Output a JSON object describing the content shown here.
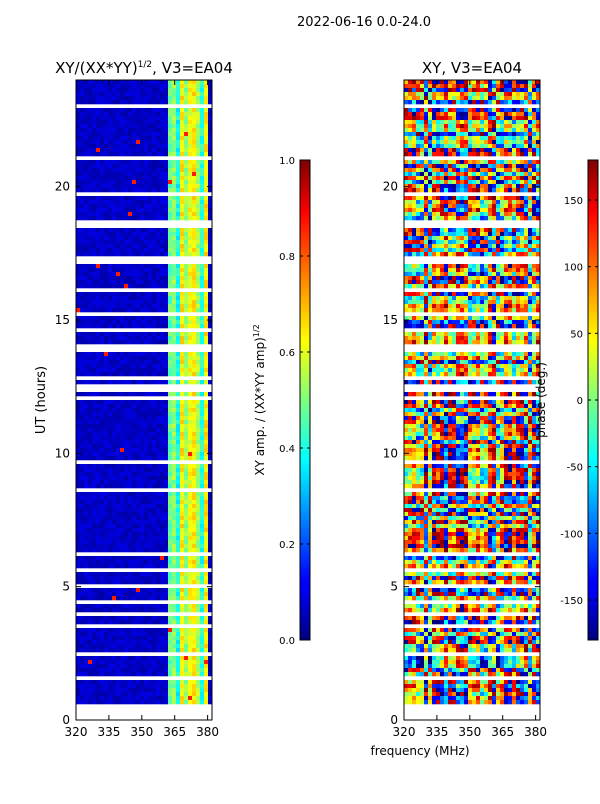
{
  "figure": {
    "suptitle": "2022-06-16 0.0-24.0",
    "shared_xlabel": "frequency (MHz)"
  },
  "chart_data": [
    {
      "type": "heatmap",
      "title_main": "XY/(XX*YY)",
      "title_exp": "1/2",
      "title_tail": ", V3=EA04",
      "xlabel": "frequency (MHz)",
      "ylabel": "UT (hours)",
      "xlim": [
        320,
        382
      ],
      "ylim": [
        0,
        24
      ],
      "xticks": [
        "320",
        "335",
        "350",
        "365",
        "380"
      ],
      "yticks": [
        "0",
        "5",
        "10",
        "15",
        "20"
      ],
      "colorbar": {
        "label_main": "XY amp. / (XX*YY amp)",
        "label_exp": "1/2",
        "range": [
          0.0,
          1.0
        ],
        "ticks": [
          "0.0",
          "0.2",
          "0.4",
          "0.6",
          "0.8",
          "1.0"
        ],
        "colormap": "jet"
      },
      "notes": "Mostly low values (~0.05) below 362 MHz; elevated band (~0.3-0.6) between 362-380 MHz; many blank rows of flagged data."
    },
    {
      "type": "heatmap",
      "title": "XY, V3=EA04",
      "xlabel": "frequency (MHz)",
      "ylabel": "",
      "xlim": [
        320,
        382
      ],
      "ylim": [
        0,
        24
      ],
      "xticks": [
        "320",
        "335",
        "350",
        "365",
        "380"
      ],
      "yticks": [
        "0",
        "5",
        "10",
        "15",
        "20"
      ],
      "colorbar": {
        "label": "phase (deg.)",
        "range": [
          -180,
          180
        ],
        "ticks": [
          "-150",
          "-100",
          "-50",
          "0",
          "50",
          "100",
          "150"
        ],
        "colormap": "jet"
      },
      "notes": "Phase varies across the full -180 to 180 range with horizontal banding; many blank rows of flagged data."
    }
  ]
}
